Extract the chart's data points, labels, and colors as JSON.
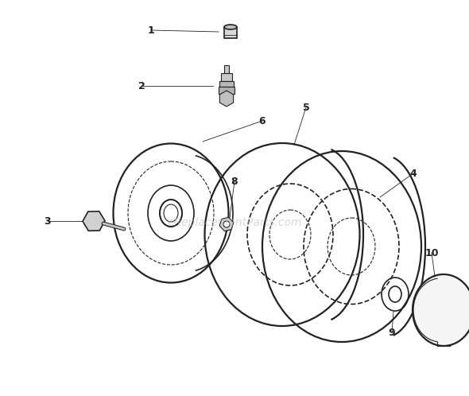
{
  "bg_color": "#ffffff",
  "line_color": "#222222",
  "watermark_text": "eplacementParts.com",
  "watermark_color": "#bbbbbb",
  "watermark_alpha": 0.55,
  "fig_width": 5.9,
  "fig_height": 4.98,
  "dpi": 100
}
